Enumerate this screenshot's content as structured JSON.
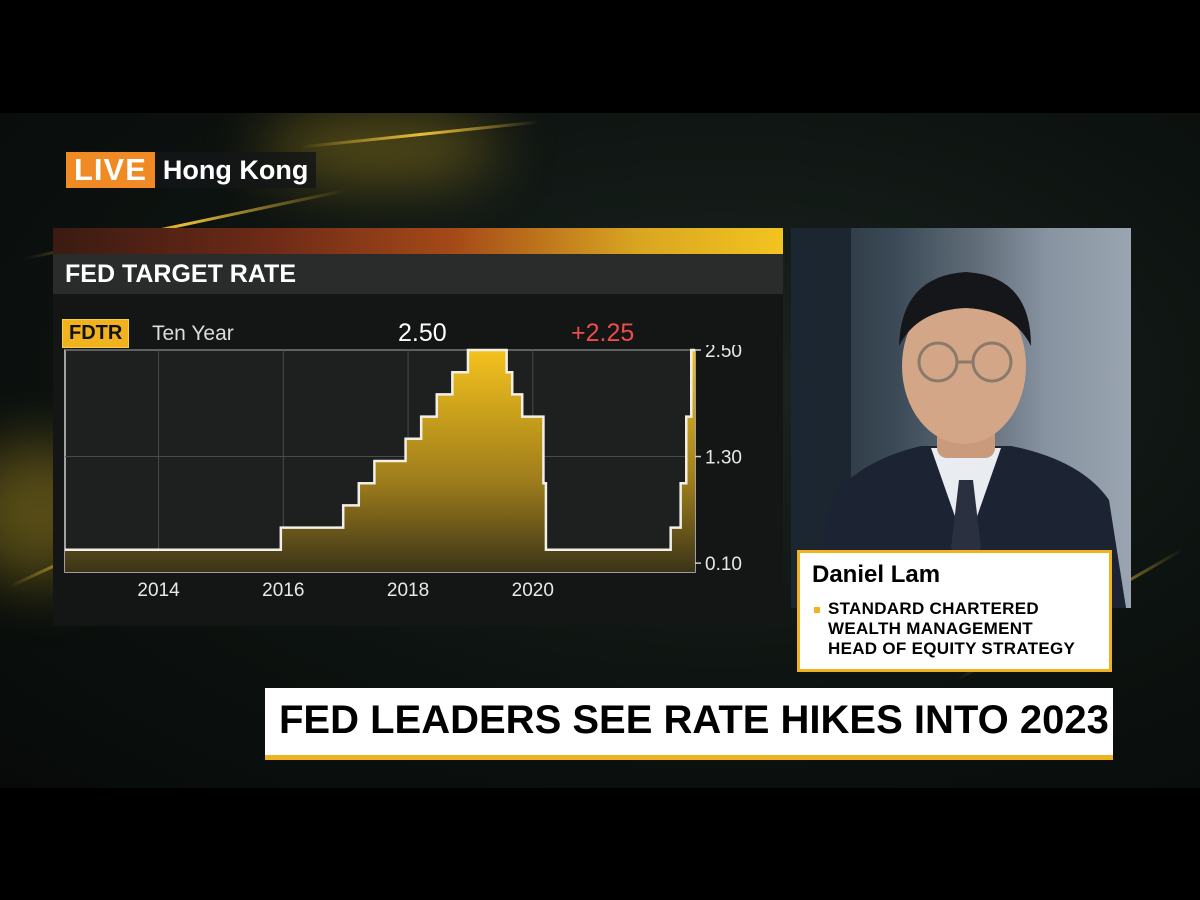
{
  "live_bug": {
    "tag": "LIVE",
    "location": "Hong Kong"
  },
  "chart_panel": {
    "title": "FED TARGET RATE",
    "ticker": "FDTR",
    "period": "Ten Year",
    "current_value": "2.50",
    "change": "+2.25"
  },
  "colors": {
    "accent": "#f0b21f",
    "change_red": "#ef4b4b",
    "live_orange": "#f08a24"
  },
  "chart_data": {
    "type": "area",
    "title": "FED TARGET RATE",
    "xlabel": "",
    "ylabel": "",
    "x_tick_labels": [
      "2014",
      "2016",
      "2018",
      "2020"
    ],
    "x_ticks": [
      2014,
      2016,
      2018,
      2020
    ],
    "y_tick_labels": [
      "2.50",
      "1.30",
      "0.10"
    ],
    "y_ticks": [
      2.5,
      1.3,
      0.1
    ],
    "xlim": [
      2012.5,
      2022.6
    ],
    "ylim": [
      0.0,
      2.5
    ],
    "grid": true,
    "step": true,
    "series": [
      {
        "name": "",
        "x": [
          2012.5,
          2015.96,
          2016.96,
          2017.21,
          2017.46,
          2017.96,
          2018.21,
          2018.46,
          2018.71,
          2018.96,
          2019.58,
          2019.67,
          2019.83,
          2020.17,
          2020.21,
          2022.21,
          2022.37,
          2022.46,
          2022.54,
          2022.6
        ],
        "y": [
          0.25,
          0.5,
          0.75,
          1.0,
          1.25,
          1.5,
          1.75,
          2.0,
          2.25,
          2.5,
          2.25,
          2.0,
          1.75,
          1.0,
          0.25,
          0.5,
          1.0,
          1.75,
          2.5,
          2.5
        ]
      }
    ]
  },
  "guest": {
    "name": "Daniel Lam",
    "title_lines": [
      "STANDARD CHARTERED",
      "WEALTH MANAGEMENT",
      "HEAD OF EQUITY STRATEGY"
    ]
  },
  "headline": "FED LEADERS SEE RATE HIKES INTO 2023"
}
